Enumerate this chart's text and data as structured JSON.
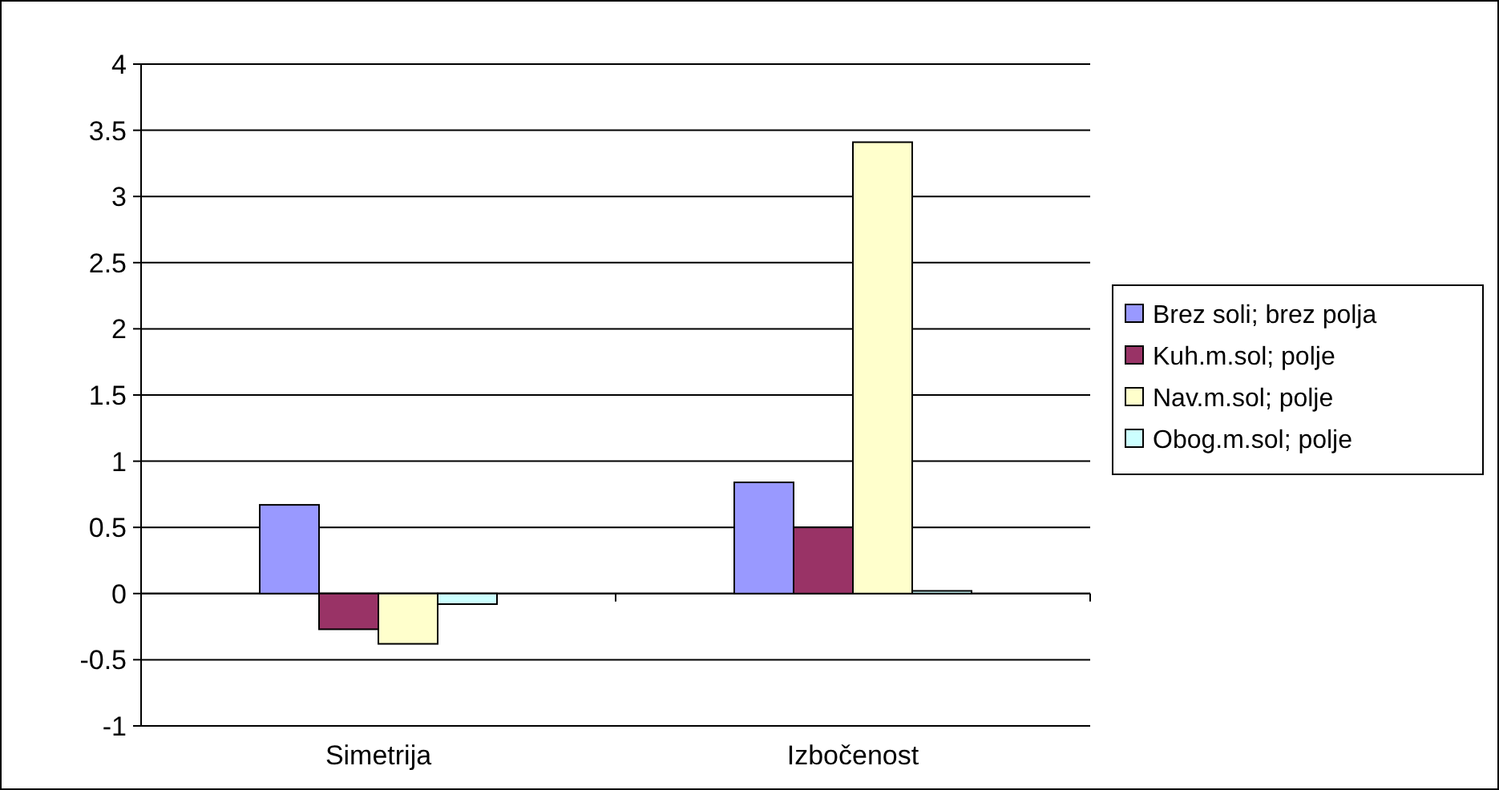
{
  "chart_data": {
    "type": "bar",
    "categories": [
      "Simetrija",
      "Izbočenost"
    ],
    "series": [
      {
        "name": "Brez soli; brez polja",
        "color": "#9999ff",
        "values": [
          0.67,
          0.84
        ]
      },
      {
        "name": "Kuh.m.sol; polje",
        "color": "#993366",
        "values": [
          -0.27,
          0.5
        ]
      },
      {
        "name": "Nav.m.sol; polje",
        "color": "#ffffcc",
        "values": [
          -0.38,
          3.41
        ]
      },
      {
        "name": "Obog.m.sol; polje",
        "color": "#ccffff",
        "values": [
          -0.08,
          0.02
        ]
      }
    ],
    "ylim": [
      -1,
      4
    ],
    "yticks": [
      -1,
      -0.5,
      0,
      0.5,
      1,
      1.5,
      2,
      2.5,
      3,
      3.5,
      4
    ],
    "grid": "y",
    "legend": "right"
  }
}
